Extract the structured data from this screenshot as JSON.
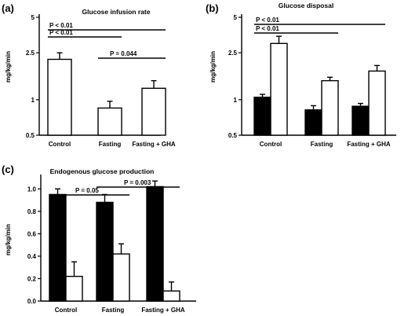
{
  "chart_data": [
    {
      "type": "bar",
      "panel": "(a)",
      "title": "Glucose infusion rate",
      "ylabel": "mg/kg/min",
      "yscale": "log",
      "ylim": [
        0.5,
        5
      ],
      "yticks": [
        "0.5",
        "1",
        "2.5",
        "5"
      ],
      "categories": [
        "Control",
        "Fasting",
        "Fasting + GHA"
      ],
      "series": [
        {
          "color": "#ffffff",
          "values": [
            2.2,
            0.85,
            1.25
          ],
          "errors": [
            0.3,
            0.12,
            0.2
          ]
        }
      ],
      "annotations": [
        {
          "text": "P < 0.01",
          "from": 0,
          "to": 2
        },
        {
          "text": "P < 0.01",
          "from": 0,
          "to": 1
        },
        {
          "text": "P = 0.044",
          "from": 1,
          "to": 2
        }
      ]
    },
    {
      "type": "bar",
      "panel": "(b)",
      "title": "Glucose disposal",
      "ylabel": "mg/kg/min",
      "yscale": "log",
      "ylim": [
        0.5,
        5
      ],
      "yticks": [
        "0.5",
        "1",
        "2.5",
        "5"
      ],
      "categories": [
        "Control",
        "Fasting",
        "Fasting + GHA"
      ],
      "series": [
        {
          "color": "#000000",
          "values": [
            1.05,
            0.82,
            0.88
          ],
          "errors": [
            0.06,
            0.07,
            0.05
          ]
        },
        {
          "color": "#ffffff",
          "values": [
            3.0,
            1.45,
            1.75
          ],
          "errors": [
            0.45,
            0.1,
            0.2
          ]
        }
      ],
      "annotations": [
        {
          "text": "P < 0.01",
          "from": 0,
          "to": 2
        },
        {
          "text": "P < 0.01",
          "from": 0,
          "to": 1
        }
      ]
    },
    {
      "type": "bar",
      "panel": "(c)",
      "title": "Endogenous glucose production",
      "ylabel": "mg/kg/min",
      "yscale": "linear",
      "ylim": [
        0,
        1.1
      ],
      "yticks": [
        "0.0",
        "0.2",
        "0.4",
        "0.6",
        "0.8",
        "1.0"
      ],
      "categories": [
        "Control",
        "Fasting",
        "Fasting + GHA"
      ],
      "series": [
        {
          "color": "#000000",
          "values": [
            0.95,
            0.88,
            1.02
          ],
          "errors": [
            0.05,
            0.07,
            0.05
          ]
        },
        {
          "color": "#ffffff",
          "values": [
            0.22,
            0.42,
            0.09
          ],
          "errors": [
            0.13,
            0.09,
            0.08
          ]
        }
      ],
      "annotations": [
        {
          "text": "P = 0.05",
          "from": 0,
          "to": 1
        },
        {
          "text": "P = 0.003",
          "from": 1,
          "to": 2
        }
      ]
    }
  ]
}
